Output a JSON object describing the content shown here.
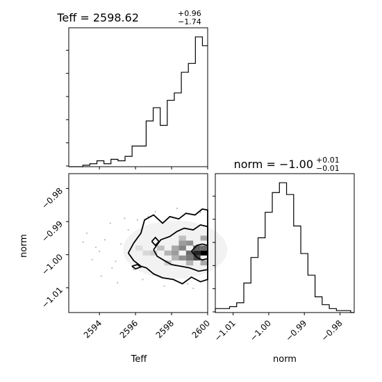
{
  "chart_data": [
    {
      "type": "histogram",
      "panel": "teff-hist",
      "title": {
        "main": "Teff = 2598.62",
        "sup": "+0.96",
        "sub": "−1.74"
      },
      "xlim": [
        2592.3,
        2600.0
      ],
      "bins": [
        2592.3,
        2592.69,
        2593.08,
        2593.47,
        2593.86,
        2594.25,
        2594.64,
        2595.03,
        2595.42,
        2595.81,
        2596.2,
        2596.59,
        2596.98,
        2597.37,
        2597.76,
        2598.15,
        2598.54,
        2598.93,
        2599.32,
        2599.71,
        2600.0
      ],
      "counts": [
        0,
        0,
        1,
        2,
        4,
        2,
        5,
        4,
        7,
        14,
        14,
        31,
        40,
        28,
        45,
        50,
        64,
        70,
        88,
        82
      ]
    },
    {
      "type": "histogram",
      "panel": "norm-hist",
      "title": {
        "main": "norm = −1.00",
        "sup": "+0.01",
        "sub": "−0.01"
      },
      "xlim": [
        -1.015,
        -0.976
      ],
      "xlabel": "norm",
      "xticks": [
        "−1.01",
        "−1.00",
        "−0.99",
        "−0.98"
      ],
      "xtick_values": [
        -1.01,
        -1.0,
        -0.99,
        -0.98
      ],
      "bins": [
        -1.015,
        -1.013,
        -1.011,
        -1.009,
        -1.007,
        -1.005,
        -1.003,
        -1.001,
        -0.999,
        -0.997,
        -0.995,
        -0.993,
        -0.991,
        -0.989,
        -0.987,
        -0.985,
        -0.983,
        -0.981,
        -0.979,
        -0.977,
        -0.976
      ],
      "counts": [
        2,
        2,
        3,
        5,
        15,
        28,
        38,
        51,
        61,
        66,
        60,
        44,
        30,
        19,
        8,
        4,
        2,
        1,
        1,
        0
      ]
    },
    {
      "type": "scatter",
      "panel": "teff-norm-2d",
      "xlabel": "Teff",
      "ylabel": "norm",
      "xlim": [
        2592.3,
        2600.0
      ],
      "ylim": [
        -1.0175,
        -0.9755
      ],
      "xticks": [
        "2594",
        "2596",
        "2598",
        "2600"
      ],
      "xtick_values": [
        2594,
        2596,
        2598,
        2600
      ],
      "yticks": [
        "−0.98",
        "−0.99",
        "−1.00",
        "−1.01"
      ],
      "ytick_values": [
        -0.98,
        -0.99,
        -1.0,
        -1.01
      ],
      "density_cells": [
        {
          "x": 2599.8,
          "y": -0.9995,
          "v": 1.0
        },
        {
          "x": 2599.4,
          "y": -0.9995,
          "v": 0.85
        },
        {
          "x": 2599.4,
          "y": -1.001,
          "v": 0.7
        },
        {
          "x": 2599.0,
          "y": -0.9995,
          "v": 0.55
        },
        {
          "x": 2599.0,
          "y": -1.001,
          "v": 0.5
        },
        {
          "x": 2599.4,
          "y": -0.998,
          "v": 0.6
        },
        {
          "x": 2599.8,
          "y": -0.998,
          "v": 0.55
        },
        {
          "x": 2598.6,
          "y": -0.998,
          "v": 0.45
        },
        {
          "x": 2598.6,
          "y": -1.001,
          "v": 0.4
        },
        {
          "x": 2598.6,
          "y": -0.9965,
          "v": 0.35
        },
        {
          "x": 2599.0,
          "y": -0.9965,
          "v": 0.4
        },
        {
          "x": 2598.2,
          "y": -0.9995,
          "v": 0.35
        },
        {
          "x": 2598.2,
          "y": -0.998,
          "v": 0.3
        },
        {
          "x": 2598.2,
          "y": -1.001,
          "v": 0.25
        },
        {
          "x": 2597.8,
          "y": -0.9995,
          "v": 0.25
        },
        {
          "x": 2597.4,
          "y": -0.998,
          "v": 0.2
        },
        {
          "x": 2597.0,
          "y": -0.9995,
          "v": 0.15
        },
        {
          "x": 2599.8,
          "y": -1.0025,
          "v": 0.3
        },
        {
          "x": 2599.0,
          "y": -1.0025,
          "v": 0.25
        },
        {
          "x": 2599.8,
          "y": -0.995,
          "v": 0.3
        },
        {
          "x": 2596.6,
          "y": -0.9995,
          "v": 0.1
        },
        {
          "x": 2596.2,
          "y": -0.998,
          "v": 0.08
        },
        {
          "x": 2598.6,
          "y": -0.995,
          "v": 0.2
        },
        {
          "x": 2597.8,
          "y": -1.0025,
          "v": 0.15
        }
      ],
      "outlier_points": [
        [
          2593.3,
          -0.9935
        ],
        [
          2593.8,
          -0.9978
        ],
        [
          2594.1,
          -1.0065
        ],
        [
          2594.6,
          -0.9905
        ],
        [
          2594.9,
          -1.002
        ],
        [
          2595.2,
          -0.9968
        ],
        [
          2595.6,
          -0.9925
        ],
        [
          2595.9,
          -1.0045
        ],
        [
          2596.1,
          -0.9895
        ],
        [
          2593.6,
          -1.0015
        ],
        [
          2594.3,
          -0.9955
        ],
        [
          2595.0,
          -1.0085
        ],
        [
          2596.4,
          -1.0075
        ],
        [
          2597.1,
          -0.987
        ],
        [
          2597.6,
          -1.0095
        ],
        [
          2598.3,
          -0.986
        ],
        [
          2598.9,
          -1.0088
        ],
        [
          2599.6,
          -0.9872
        ],
        [
          2595.4,
          -0.989
        ],
        [
          2594.7,
          -1.004
        ],
        [
          2596.7,
          -0.9885
        ],
        [
          2593.1,
          -0.9962
        ],
        [
          2594.0,
          -0.999
        ],
        [
          2599.2,
          -1.0102
        ]
      ],
      "contours": [
        {
          "level": "outer",
          "points": [
            [
              2595.6,
              -0.9995
            ],
            [
              2595.9,
              -0.9965
            ],
            [
              2596.3,
              -0.9935
            ],
            [
              2596.5,
              -0.9895
            ],
            [
              2597.0,
              -0.988
            ],
            [
              2597.5,
              -0.9905
            ],
            [
              2597.9,
              -0.9885
            ],
            [
              2598.4,
              -0.9892
            ],
            [
              2598.8,
              -0.9875
            ],
            [
              2599.3,
              -0.988
            ],
            [
              2599.7,
              -0.9862
            ],
            [
              2600.0,
              -0.9865
            ],
            [
              2600.0,
              -1.0075
            ],
            [
              2599.6,
              -1.0082
            ],
            [
              2599.1,
              -1.0068
            ],
            [
              2598.6,
              -1.0088
            ],
            [
              2598.1,
              -1.0075
            ],
            [
              2597.5,
              -1.007
            ],
            [
              2597.0,
              -1.0058
            ],
            [
              2596.6,
              -1.004
            ],
            [
              2596.3,
              -1.0035
            ],
            [
              2595.9,
              -1.0018
            ],
            [
              2595.6,
              -0.9995
            ]
          ]
        },
        {
          "level": "middle",
          "points": [
            [
              2597.0,
              -0.9985
            ],
            [
              2597.4,
              -0.9955
            ],
            [
              2597.9,
              -0.9945
            ],
            [
              2598.3,
              -0.993
            ],
            [
              2598.7,
              -0.992
            ],
            [
              2599.2,
              -0.9925
            ],
            [
              2599.6,
              -0.991
            ],
            [
              2600.0,
              -0.9915
            ],
            [
              2600.0,
              -1.0045
            ],
            [
              2599.5,
              -1.005
            ],
            [
              2599.0,
              -1.004
            ],
            [
              2598.5,
              -1.0035
            ],
            [
              2598.0,
              -1.003
            ],
            [
              2597.6,
              -1.0018
            ],
            [
              2597.2,
              -1.0005
            ],
            [
              2597.0,
              -0.9985
            ]
          ]
        },
        {
          "level": "inner",
          "points": [
            [
              2599.1,
              -0.999
            ],
            [
              2599.4,
              -0.9972
            ],
            [
              2599.7,
              -0.9968
            ],
            [
              2600.0,
              -0.9972
            ],
            [
              2600.0,
              -1.0012
            ],
            [
              2599.7,
              -1.0016
            ],
            [
              2599.4,
              -1.0008
            ],
            [
              2599.1,
              -0.999
            ]
          ]
        },
        {
          "level": "island1",
          "points": [
            [
              2596.9,
              -0.996
            ],
            [
              2597.1,
              -0.9948
            ],
            [
              2597.3,
              -0.996
            ],
            [
              2597.1,
              -0.9972
            ],
            [
              2596.9,
              -0.996
            ]
          ]
        },
        {
          "level": "island2",
          "points": [
            [
              2595.8,
              -1.0035
            ],
            [
              2596.1,
              -1.003
            ],
            [
              2596.3,
              -1.0037
            ],
            [
              2596.0,
              -1.0043
            ],
            [
              2595.8,
              -1.0035
            ]
          ]
        }
      ]
    }
  ]
}
